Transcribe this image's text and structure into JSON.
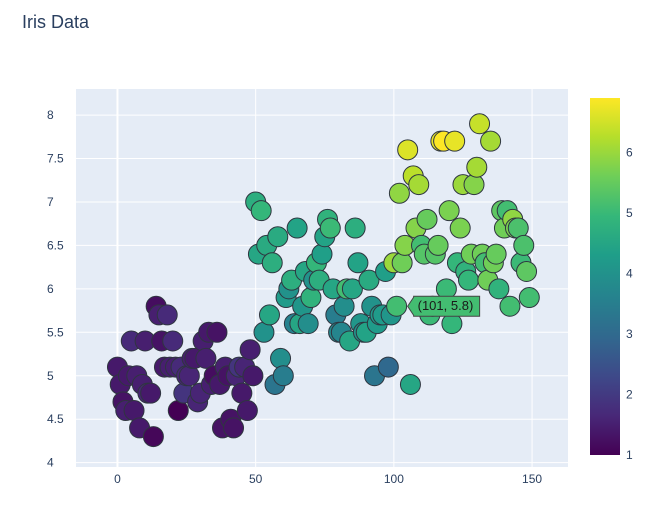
{
  "chart_data": {
    "type": "scatter",
    "title": "Iris Data",
    "xlabel": "",
    "ylabel": "",
    "xlim": [
      -15,
      163
    ],
    "ylim": [
      3.95,
      8.3
    ],
    "x_ticks": [
      0,
      50,
      100,
      150
    ],
    "y_ticks": [
      4,
      4.5,
      5,
      5.5,
      6,
      6.5,
      7,
      7.5,
      8
    ],
    "grid": true,
    "colorbar": {
      "colorscale": "Viridis",
      "range": [
        1,
        6.9
      ],
      "ticks": [
        1,
        2,
        3,
        4,
        5,
        6
      ]
    },
    "hover_label": "(101, 5.8)",
    "hover_point": {
      "x": 101,
      "y": 5.8
    },
    "points": [
      {
        "x": 0,
        "y": 5.1,
        "c": 1.4
      },
      {
        "x": 1,
        "y": 4.9,
        "c": 1.4
      },
      {
        "x": 2,
        "y": 4.7,
        "c": 1.3
      },
      {
        "x": 3,
        "y": 4.6,
        "c": 1.5
      },
      {
        "x": 4,
        "y": 5.0,
        "c": 1.4
      },
      {
        "x": 5,
        "y": 5.4,
        "c": 1.7
      },
      {
        "x": 6,
        "y": 4.6,
        "c": 1.4
      },
      {
        "x": 7,
        "y": 5.0,
        "c": 1.5
      },
      {
        "x": 8,
        "y": 4.4,
        "c": 1.4
      },
      {
        "x": 9,
        "y": 4.9,
        "c": 1.5
      },
      {
        "x": 10,
        "y": 5.4,
        "c": 1.5
      },
      {
        "x": 11,
        "y": 4.8,
        "c": 1.6
      },
      {
        "x": 12,
        "y": 4.8,
        "c": 1.4
      },
      {
        "x": 13,
        "y": 4.3,
        "c": 1.1
      },
      {
        "x": 14,
        "y": 5.8,
        "c": 1.2
      },
      {
        "x": 15,
        "y": 5.7,
        "c": 1.5
      },
      {
        "x": 16,
        "y": 5.4,
        "c": 1.3
      },
      {
        "x": 17,
        "y": 5.1,
        "c": 1.4
      },
      {
        "x": 18,
        "y": 5.7,
        "c": 1.7
      },
      {
        "x": 19,
        "y": 5.1,
        "c": 1.5
      },
      {
        "x": 20,
        "y": 5.4,
        "c": 1.7
      },
      {
        "x": 21,
        "y": 5.1,
        "c": 1.5
      },
      {
        "x": 22,
        "y": 4.6,
        "c": 1.0
      },
      {
        "x": 23,
        "y": 5.1,
        "c": 1.7
      },
      {
        "x": 24,
        "y": 4.8,
        "c": 1.9
      },
      {
        "x": 25,
        "y": 5.0,
        "c": 1.6
      },
      {
        "x": 26,
        "y": 5.0,
        "c": 1.6
      },
      {
        "x": 27,
        "y": 5.2,
        "c": 1.5
      },
      {
        "x": 28,
        "y": 5.2,
        "c": 1.4
      },
      {
        "x": 29,
        "y": 4.7,
        "c": 1.6
      },
      {
        "x": 30,
        "y": 4.8,
        "c": 1.6
      },
      {
        "x": 31,
        "y": 5.4,
        "c": 1.5
      },
      {
        "x": 32,
        "y": 5.2,
        "c": 1.5
      },
      {
        "x": 33,
        "y": 5.5,
        "c": 1.4
      },
      {
        "x": 34,
        "y": 4.9,
        "c": 1.5
      },
      {
        "x": 35,
        "y": 5.0,
        "c": 1.2
      },
      {
        "x": 36,
        "y": 5.5,
        "c": 1.3
      },
      {
        "x": 37,
        "y": 4.9,
        "c": 1.4
      },
      {
        "x": 38,
        "y": 4.4,
        "c": 1.3
      },
      {
        "x": 39,
        "y": 5.1,
        "c": 1.5
      },
      {
        "x": 40,
        "y": 5.0,
        "c": 1.3
      },
      {
        "x": 41,
        "y": 4.5,
        "c": 1.3
      },
      {
        "x": 42,
        "y": 4.4,
        "c": 1.3
      },
      {
        "x": 43,
        "y": 5.0,
        "c": 1.6
      },
      {
        "x": 44,
        "y": 5.1,
        "c": 1.9
      },
      {
        "x": 45,
        "y": 4.8,
        "c": 1.4
      },
      {
        "x": 46,
        "y": 5.1,
        "c": 1.6
      },
      {
        "x": 47,
        "y": 4.6,
        "c": 1.4
      },
      {
        "x": 48,
        "y": 5.3,
        "c": 1.5
      },
      {
        "x": 49,
        "y": 5.0,
        "c": 1.4
      },
      {
        "x": 50,
        "y": 7.0,
        "c": 4.7
      },
      {
        "x": 51,
        "y": 6.4,
        "c": 4.5
      },
      {
        "x": 52,
        "y": 6.9,
        "c": 4.9
      },
      {
        "x": 53,
        "y": 5.5,
        "c": 4.0
      },
      {
        "x": 54,
        "y": 6.5,
        "c": 4.6
      },
      {
        "x": 55,
        "y": 5.7,
        "c": 4.5
      },
      {
        "x": 56,
        "y": 6.3,
        "c": 4.7
      },
      {
        "x": 57,
        "y": 4.9,
        "c": 3.3
      },
      {
        "x": 58,
        "y": 6.6,
        "c": 4.6
      },
      {
        "x": 59,
        "y": 5.2,
        "c": 3.9
      },
      {
        "x": 60,
        "y": 5.0,
        "c": 3.5
      },
      {
        "x": 61,
        "y": 5.9,
        "c": 4.2
      },
      {
        "x": 62,
        "y": 6.0,
        "c": 4.0
      },
      {
        "x": 63,
        "y": 6.1,
        "c": 4.7
      },
      {
        "x": 64,
        "y": 5.6,
        "c": 3.6
      },
      {
        "x": 65,
        "y": 6.7,
        "c": 4.4
      },
      {
        "x": 66,
        "y": 5.6,
        "c": 4.5
      },
      {
        "x": 67,
        "y": 5.8,
        "c": 4.1
      },
      {
        "x": 68,
        "y": 6.2,
        "c": 4.5
      },
      {
        "x": 69,
        "y": 5.6,
        "c": 3.9
      },
      {
        "x": 70,
        "y": 5.9,
        "c": 4.8
      },
      {
        "x": 71,
        "y": 6.1,
        "c": 4.0
      },
      {
        "x": 72,
        "y": 6.3,
        "c": 4.9
      },
      {
        "x": 73,
        "y": 6.1,
        "c": 4.7
      },
      {
        "x": 74,
        "y": 6.4,
        "c": 4.3
      },
      {
        "x": 75,
        "y": 6.6,
        "c": 4.4
      },
      {
        "x": 76,
        "y": 6.8,
        "c": 4.8
      },
      {
        "x": 77,
        "y": 6.7,
        "c": 5.0
      },
      {
        "x": 78,
        "y": 6.0,
        "c": 4.5
      },
      {
        "x": 79,
        "y": 5.7,
        "c": 3.5
      },
      {
        "x": 80,
        "y": 5.5,
        "c": 3.8
      },
      {
        "x": 81,
        "y": 5.5,
        "c": 3.7
      },
      {
        "x": 82,
        "y": 5.8,
        "c": 3.9
      },
      {
        "x": 83,
        "y": 6.0,
        "c": 5.1
      },
      {
        "x": 84,
        "y": 5.4,
        "c": 4.5
      },
      {
        "x": 85,
        "y": 6.0,
        "c": 4.5
      },
      {
        "x": 86,
        "y": 6.7,
        "c": 4.7
      },
      {
        "x": 87,
        "y": 6.3,
        "c": 4.4
      },
      {
        "x": 88,
        "y": 5.6,
        "c": 4.1
      },
      {
        "x": 89,
        "y": 5.5,
        "c": 4.0
      },
      {
        "x": 90,
        "y": 5.5,
        "c": 4.4
      },
      {
        "x": 91,
        "y": 6.1,
        "c": 4.6
      },
      {
        "x": 92,
        "y": 5.8,
        "c": 4.0
      },
      {
        "x": 93,
        "y": 5.0,
        "c": 3.3
      },
      {
        "x": 94,
        "y": 5.6,
        "c": 4.2
      },
      {
        "x": 95,
        "y": 5.7,
        "c": 4.2
      },
      {
        "x": 96,
        "y": 5.7,
        "c": 4.2
      },
      {
        "x": 97,
        "y": 6.2,
        "c": 4.3
      },
      {
        "x": 98,
        "y": 5.1,
        "c": 3.0
      },
      {
        "x": 99,
        "y": 5.7,
        "c": 4.1
      },
      {
        "x": 100,
        "y": 6.3,
        "c": 6.0
      },
      {
        "x": 101,
        "y": 5.8,
        "c": 5.1
      },
      {
        "x": 102,
        "y": 7.1,
        "c": 5.9
      },
      {
        "x": 103,
        "y": 6.3,
        "c": 5.6
      },
      {
        "x": 104,
        "y": 6.5,
        "c": 5.8
      },
      {
        "x": 105,
        "y": 7.6,
        "c": 6.6
      },
      {
        "x": 106,
        "y": 4.9,
        "c": 4.5
      },
      {
        "x": 107,
        "y": 7.3,
        "c": 6.3
      },
      {
        "x": 108,
        "y": 6.7,
        "c": 5.8
      },
      {
        "x": 109,
        "y": 7.2,
        "c": 6.1
      },
      {
        "x": 110,
        "y": 6.5,
        "c": 5.1
      },
      {
        "x": 111,
        "y": 6.4,
        "c": 5.3
      },
      {
        "x": 112,
        "y": 6.8,
        "c": 5.5
      },
      {
        "x": 113,
        "y": 5.7,
        "c": 5.0
      },
      {
        "x": 114,
        "y": 5.8,
        "c": 5.1
      },
      {
        "x": 115,
        "y": 6.4,
        "c": 5.3
      },
      {
        "x": 116,
        "y": 6.5,
        "c": 5.5
      },
      {
        "x": 117,
        "y": 7.7,
        "c": 6.7
      },
      {
        "x": 118,
        "y": 7.7,
        "c": 6.9
      },
      {
        "x": 119,
        "y": 6.0,
        "c": 5.0
      },
      {
        "x": 120,
        "y": 6.9,
        "c": 5.7
      },
      {
        "x": 121,
        "y": 5.6,
        "c": 4.9
      },
      {
        "x": 122,
        "y": 7.7,
        "c": 6.7
      },
      {
        "x": 123,
        "y": 6.3,
        "c": 4.9
      },
      {
        "x": 124,
        "y": 6.7,
        "c": 5.7
      },
      {
        "x": 125,
        "y": 7.2,
        "c": 6.0
      },
      {
        "x": 126,
        "y": 6.2,
        "c": 4.8
      },
      {
        "x": 127,
        "y": 6.1,
        "c": 4.9
      },
      {
        "x": 128,
        "y": 6.4,
        "c": 5.6
      },
      {
        "x": 129,
        "y": 7.2,
        "c": 5.8
      },
      {
        "x": 130,
        "y": 7.4,
        "c": 6.1
      },
      {
        "x": 131,
        "y": 7.9,
        "c": 6.4
      },
      {
        "x": 132,
        "y": 6.4,
        "c": 5.6
      },
      {
        "x": 133,
        "y": 6.3,
        "c": 5.1
      },
      {
        "x": 134,
        "y": 6.1,
        "c": 5.6
      },
      {
        "x": 135,
        "y": 7.7,
        "c": 6.1
      },
      {
        "x": 136,
        "y": 6.3,
        "c": 5.6
      },
      {
        "x": 137,
        "y": 6.4,
        "c": 5.5
      },
      {
        "x": 138,
        "y": 6.0,
        "c": 4.8
      },
      {
        "x": 139,
        "y": 6.9,
        "c": 5.4
      },
      {
        "x": 140,
        "y": 6.7,
        "c": 5.6
      },
      {
        "x": 141,
        "y": 6.9,
        "c": 5.1
      },
      {
        "x": 142,
        "y": 5.8,
        "c": 5.1
      },
      {
        "x": 143,
        "y": 6.8,
        "c": 5.9
      },
      {
        "x": 144,
        "y": 6.7,
        "c": 5.7
      },
      {
        "x": 145,
        "y": 6.7,
        "c": 5.2
      },
      {
        "x": 146,
        "y": 6.3,
        "c": 5.0
      },
      {
        "x": 147,
        "y": 6.5,
        "c": 5.2
      },
      {
        "x": 148,
        "y": 6.2,
        "c": 5.4
      },
      {
        "x": 149,
        "y": 5.9,
        "c": 5.1
      }
    ]
  },
  "colors": {
    "plot_bg": "#e5ecf6",
    "grid": "#ffffff",
    "text": "#2a3f5f",
    "marker_line": "#2f3640"
  }
}
